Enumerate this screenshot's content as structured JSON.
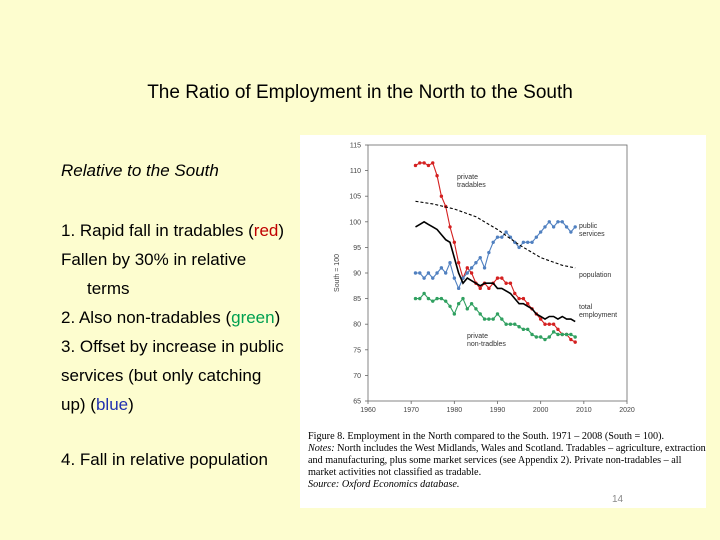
{
  "slide": {
    "title": "The Ratio of Employment in the North to the South",
    "subtitle": "Relative to the South",
    "bullets": {
      "b1_pre": "1. Rapid fall in tradables (",
      "b1_color": "red",
      "b1_post": ")",
      "b1_line2": "Fallen by 30% in relative",
      "b1_line3": "terms",
      "b2_pre": "2. Also non-tradables (",
      "b2_color": "green",
      "b2_post": ")",
      "b3_line1": "3. Offset by increase in public",
      "b3_line2": "services (but only catching",
      "b3_pre": "up) (",
      "b3_color": "blue",
      "b3_post": ")",
      "b4": "4. Fall in relative population"
    },
    "page_number": "14"
  },
  "figure": {
    "caption_label": "Figure 8.",
    "caption_title": "Employment in the North compared to the South. 1971 – 2008 (South = 100).",
    "notes_label": "Notes:",
    "notes_text": "North includes the West Midlands, Wales and Scotland. Tradables – agriculture, extraction and manufacturing, plus some market services (see Appendix 2). Private non-tradables – all market activities not classified as tradable.",
    "source_label": "Source:",
    "source_text": "Oxford Economics database."
  },
  "chart_data": {
    "type": "line",
    "ylabel": "South = 100",
    "xlim": [
      1960,
      2020
    ],
    "ylim": [
      65,
      115
    ],
    "x_ticks": [
      1960,
      1970,
      1980,
      1990,
      2000,
      2010,
      2020
    ],
    "y_ticks": [
      65,
      70,
      75,
      80,
      85,
      90,
      95,
      100,
      105,
      110,
      115
    ],
    "grid": false,
    "series": [
      {
        "name": "private tradables",
        "color": "#d42020",
        "style": "solid-markers",
        "label_lines": [
          "private",
          "tradables"
        ],
        "x": [
          1971,
          1972,
          1973,
          1974,
          1975,
          1976,
          1977,
          1978,
          1979,
          1980,
          1981,
          1982,
          1983,
          1984,
          1985,
          1986,
          1987,
          1988,
          1989,
          1990,
          1991,
          1992,
          1993,
          1994,
          1995,
          1996,
          1997,
          1998,
          1999,
          2000,
          2001,
          2002,
          2003,
          2004,
          2005,
          2006,
          2007,
          2008
        ],
        "y": [
          111,
          111.5,
          111.5,
          111,
          111.5,
          109,
          105,
          103,
          99,
          96,
          92,
          89,
          91,
          90,
          88,
          87,
          88,
          87,
          88,
          89,
          89,
          88,
          88,
          86,
          85,
          85,
          84,
          83,
          82,
          81,
          80,
          80,
          80,
          79,
          78,
          78,
          77,
          76.5
        ]
      },
      {
        "name": "public services",
        "color": "#5080c0",
        "style": "solid-markers",
        "label_lines": [
          "public",
          "services"
        ],
        "x": [
          1971,
          1972,
          1973,
          1974,
          1975,
          1976,
          1977,
          1978,
          1979,
          1980,
          1981,
          1982,
          1983,
          1984,
          1985,
          1986,
          1987,
          1988,
          1989,
          1990,
          1991,
          1992,
          1993,
          1994,
          1995,
          1996,
          1997,
          1998,
          1999,
          2000,
          2001,
          2002,
          2003,
          2004,
          2005,
          2006,
          2007,
          2008
        ],
        "y": [
          90,
          90,
          89,
          90,
          89,
          90,
          91,
          90,
          92,
          89,
          87,
          89,
          90,
          91,
          92,
          93,
          91,
          94,
          96,
          97,
          97,
          98,
          97,
          96,
          95,
          96,
          96,
          96,
          97,
          98,
          99,
          100,
          99,
          100,
          100,
          99,
          98,
          99
        ]
      },
      {
        "name": "population",
        "color": "#000000",
        "style": "dashed",
        "label_lines": [
          "population"
        ],
        "x": [
          1971,
          1975,
          1980,
          1985,
          1990,
          1995,
          2000,
          2005,
          2008
        ],
        "y": [
          104,
          103.5,
          102.5,
          101,
          98.5,
          95.5,
          93,
          91.5,
          91
        ]
      },
      {
        "name": "total employment",
        "color": "#000000",
        "style": "solid",
        "label_lines": [
          "total",
          "employment"
        ],
        "x": [
          1971,
          1972,
          1973,
          1974,
          1975,
          1976,
          1977,
          1978,
          1979,
          1980,
          1981,
          1982,
          1983,
          1984,
          1985,
          1986,
          1987,
          1988,
          1989,
          1990,
          1991,
          1992,
          1993,
          1994,
          1995,
          1996,
          1997,
          1998,
          1999,
          2000,
          2001,
          2002,
          2003,
          2004,
          2005,
          2006,
          2007,
          2008
        ],
        "y": [
          99,
          99.5,
          100,
          99.5,
          99,
          98.5,
          97.5,
          96.5,
          96,
          93,
          90,
          88,
          89,
          88.5,
          88,
          87.5,
          88,
          88,
          88,
          87,
          87,
          86.5,
          86,
          85,
          84,
          84,
          83.5,
          83,
          82,
          81.5,
          81,
          81.5,
          81.5,
          81,
          81.5,
          81,
          81,
          80.5
        ]
      },
      {
        "name": "private non-tradables",
        "color": "#30a060",
        "style": "solid-markers",
        "label_lines": [
          "private",
          "non-tradbles"
        ],
        "x": [
          1971,
          1972,
          1973,
          1974,
          1975,
          1976,
          1977,
          1978,
          1979,
          1980,
          1981,
          1982,
          1983,
          1984,
          1985,
          1986,
          1987,
          1988,
          1989,
          1990,
          1991,
          1992,
          1993,
          1994,
          1995,
          1996,
          1997,
          1998,
          1999,
          2000,
          2001,
          2002,
          2003,
          2004,
          2005,
          2006,
          2007,
          2008
        ],
        "y": [
          85,
          85,
          86,
          85,
          84.5,
          85,
          85,
          84.5,
          83.5,
          82,
          84,
          85,
          83,
          84,
          83,
          82,
          81,
          81,
          81,
          82,
          81,
          80,
          80,
          80,
          79.5,
          79,
          79,
          78,
          77.5,
          77.5,
          77,
          77.5,
          78.5,
          78,
          78,
          78,
          78,
          77.5
        ]
      }
    ]
  }
}
